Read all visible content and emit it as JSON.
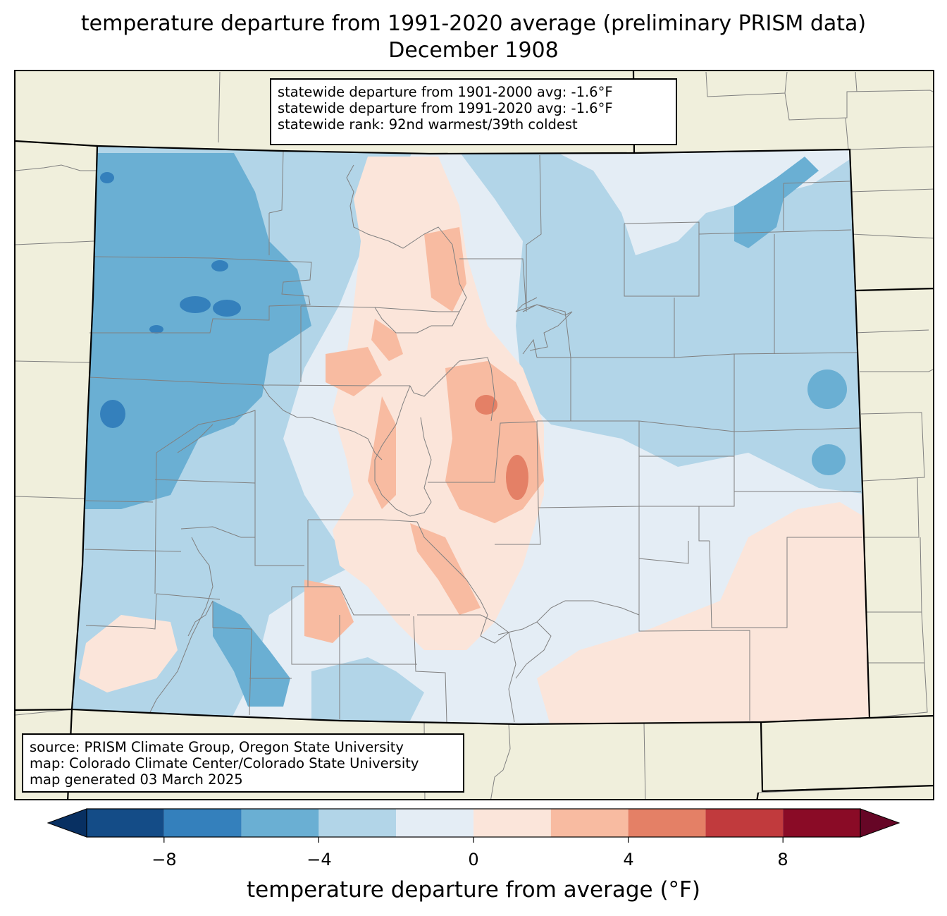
{
  "title": {
    "line1": "temperature departure from 1991-2020 average (preliminary PRISM data)",
    "line2": "December 1908"
  },
  "stats_box": {
    "line1": "statewide departure from 1901-2000 avg: -1.6°F",
    "line2": "statewide departure from 1991-2020 avg: -1.6°F",
    "line3": "statewide rank: 92nd warmest/39th coldest"
  },
  "source_box": {
    "line1": "source: PRISM Climate Group, Oregon State University",
    "line2": "map: Colorado Climate Center/Colorado State University",
    "line3": "map generated 03 March 2025"
  },
  "colorbar": {
    "title": "temperature departure from average (°F)",
    "tick_labels": [
      "−8",
      "−4",
      "0",
      "4",
      "8"
    ],
    "bins": [
      -10,
      -8,
      -6,
      -4,
      -2,
      0,
      2,
      4,
      6,
      8,
      10
    ],
    "colors": [
      "#144c87",
      "#3480bc",
      "#6aafd3",
      "#b2d5e8",
      "#e4edf5",
      "#fbe5da",
      "#f8bba1",
      "#e48066",
      "#c13a3d",
      "#8a0b26"
    ],
    "under_color": "#083062",
    "over_color": "#660626"
  },
  "map_colors": {
    "background": "#f0efdc",
    "county_lines": "#808080",
    "state_lines": "#000000"
  }
}
